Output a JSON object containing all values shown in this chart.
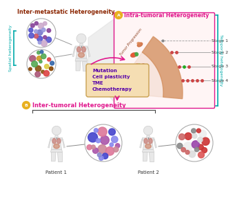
{
  "bg_color": "#ffffff",
  "inter_meta_title": "Inter-metastatic Heterogeneity",
  "intra_tumor_title": "Intra-tumoral Heterogeneity",
  "inter_tumor_title": "Inter-tumoral Heterogeneity",
  "spatial_label": "Spatial heterogeneity",
  "temporal_label": "Temporal heterogeneity",
  "stages": [
    "Stage 1",
    "Stage 2",
    "Stage 3",
    "Stage 4"
  ],
  "box_text_lines": [
    "Mutation",
    "Cell plasticity",
    "TME",
    "Chemotherapy"
  ],
  "patient_labels": [
    "Patient 1",
    "Patient 2"
  ],
  "magenta": "#e0168c",
  "teal": "#00aaaa",
  "brown_red": "#8B2500",
  "box_bg": "#f5deb3",
  "box_border": "#c8a050",
  "body_color": "#e8e8e8",
  "body_edge": "#cccccc",
  "organ_lung": "#d4a0a0",
  "organ_gut": "#c87050",
  "arc_outer": "#d4906060",
  "arc_inner": "#e8b09060",
  "cone_color": "#e0e0e0",
  "stage_line_color": "#999999",
  "intra_box_bg": "#fff5f5",
  "tumor_arc_color": "#d4907060",
  "tumor_arc_inner": "#c87850",
  "cluster1_colors": [
    "#5555cc",
    "#7777cc",
    "#9999dd",
    "#cc5566",
    "#884499",
    "#ccaacc",
    "#4455aa",
    "#aaaacc"
  ],
  "cluster2_colors": [
    "#ddcc44",
    "#cc9922",
    "#884400",
    "#dd4444",
    "#55aa55",
    "#aa5577",
    "#3366aa",
    "#885511"
  ],
  "cluster_p1_colors": [
    "#4444cc",
    "#8888cc",
    "#ccaacc",
    "#dd7799",
    "#aa55aa",
    "#8888ee",
    "#cc8899"
  ],
  "cluster_p2_colors": [
    "#cc3333",
    "#dd5555",
    "#9944aa",
    "#dddddd",
    "#eeeeee",
    "#888888",
    "#cc6666"
  ]
}
